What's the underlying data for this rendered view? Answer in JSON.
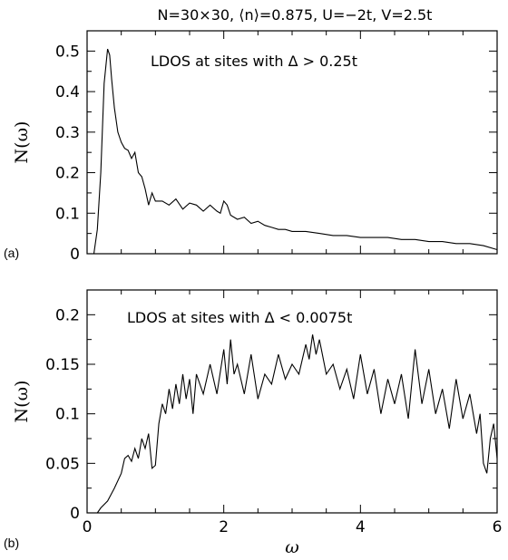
{
  "figure": {
    "title": "N=30×30, ⟨n⟩=0.875, U=−2t, V=2.5t"
  },
  "chart_data": [
    {
      "panel_label": "(a)",
      "type": "line",
      "annotation": "LDOS at sites with Δ > 0.25t",
      "xlabel": "",
      "ylabel": "N(ω)",
      "xlim": [
        0,
        6
      ],
      "ylim": [
        0,
        0.55
      ],
      "xticks": [
        0,
        2,
        4,
        6
      ],
      "yticks": [
        0,
        0.1,
        0.2,
        0.3,
        0.4,
        0.5
      ],
      "ytick_labels": [
        "0",
        "0.1",
        "0.2",
        "0.3",
        "0.4",
        "0.5"
      ],
      "show_xtick_labels": false,
      "grid": false,
      "x": [
        0.1,
        0.15,
        0.2,
        0.25,
        0.3,
        0.33,
        0.36,
        0.4,
        0.45,
        0.5,
        0.55,
        0.6,
        0.65,
        0.7,
        0.75,
        0.8,
        0.85,
        0.9,
        0.95,
        1.0,
        1.1,
        1.2,
        1.3,
        1.4,
        1.5,
        1.6,
        1.7,
        1.8,
        1.9,
        1.95,
        2.0,
        2.05,
        2.1,
        2.2,
        2.3,
        2.4,
        2.5,
        2.6,
        2.7,
        2.8,
        2.9,
        3.0,
        3.2,
        3.4,
        3.6,
        3.8,
        4.0,
        4.2,
        4.4,
        4.6,
        4.8,
        5.0,
        5.2,
        5.4,
        5.6,
        5.8,
        6.0
      ],
      "y": [
        0.0,
        0.06,
        0.2,
        0.42,
        0.505,
        0.49,
        0.43,
        0.36,
        0.3,
        0.275,
        0.26,
        0.255,
        0.235,
        0.25,
        0.2,
        0.19,
        0.16,
        0.12,
        0.15,
        0.13,
        0.13,
        0.12,
        0.135,
        0.11,
        0.125,
        0.12,
        0.105,
        0.12,
        0.105,
        0.1,
        0.13,
        0.12,
        0.095,
        0.085,
        0.09,
        0.075,
        0.08,
        0.07,
        0.065,
        0.06,
        0.06,
        0.055,
        0.055,
        0.05,
        0.045,
        0.045,
        0.04,
        0.04,
        0.04,
        0.035,
        0.035,
        0.03,
        0.03,
        0.025,
        0.025,
        0.02,
        0.01
      ]
    },
    {
      "panel_label": "(b)",
      "type": "line",
      "annotation": "LDOS at sites with Δ < 0.0075t",
      "xlabel": "ω",
      "ylabel": "N(ω)",
      "xlim": [
        0,
        6
      ],
      "ylim": [
        0,
        0.225
      ],
      "xticks": [
        0,
        2,
        4,
        6
      ],
      "yticks": [
        0,
        0.05,
        0.1,
        0.15,
        0.2
      ],
      "ytick_labels": [
        "0",
        "0.05",
        "0.1",
        "0.15",
        "0.2"
      ],
      "show_xtick_labels": true,
      "grid": false,
      "x": [
        0.15,
        0.2,
        0.3,
        0.4,
        0.5,
        0.55,
        0.6,
        0.65,
        0.7,
        0.75,
        0.8,
        0.85,
        0.9,
        0.95,
        1.0,
        1.05,
        1.1,
        1.15,
        1.2,
        1.25,
        1.3,
        1.35,
        1.4,
        1.45,
        1.5,
        1.55,
        1.6,
        1.7,
        1.8,
        1.9,
        2.0,
        2.05,
        2.1,
        2.15,
        2.2,
        2.3,
        2.4,
        2.5,
        2.6,
        2.7,
        2.8,
        2.9,
        3.0,
        3.1,
        3.2,
        3.25,
        3.3,
        3.35,
        3.4,
        3.5,
        3.6,
        3.7,
        3.8,
        3.9,
        4.0,
        4.1,
        4.2,
        4.3,
        4.4,
        4.5,
        4.6,
        4.7,
        4.8,
        4.9,
        5.0,
        5.1,
        5.2,
        5.3,
        5.4,
        5.5,
        5.6,
        5.7,
        5.75,
        5.8,
        5.85,
        5.9,
        5.95,
        6.0
      ],
      "y": [
        0.0,
        0.005,
        0.012,
        0.025,
        0.04,
        0.055,
        0.058,
        0.052,
        0.065,
        0.055,
        0.075,
        0.065,
        0.08,
        0.045,
        0.048,
        0.09,
        0.11,
        0.1,
        0.125,
        0.105,
        0.13,
        0.11,
        0.14,
        0.115,
        0.135,
        0.1,
        0.14,
        0.12,
        0.15,
        0.12,
        0.165,
        0.13,
        0.175,
        0.14,
        0.15,
        0.12,
        0.16,
        0.115,
        0.14,
        0.13,
        0.16,
        0.135,
        0.15,
        0.14,
        0.17,
        0.155,
        0.18,
        0.16,
        0.175,
        0.14,
        0.15,
        0.125,
        0.145,
        0.115,
        0.16,
        0.12,
        0.145,
        0.1,
        0.135,
        0.11,
        0.14,
        0.095,
        0.165,
        0.11,
        0.145,
        0.1,
        0.125,
        0.085,
        0.135,
        0.095,
        0.12,
        0.08,
        0.1,
        0.05,
        0.04,
        0.075,
        0.09,
        0.055
      ]
    }
  ]
}
